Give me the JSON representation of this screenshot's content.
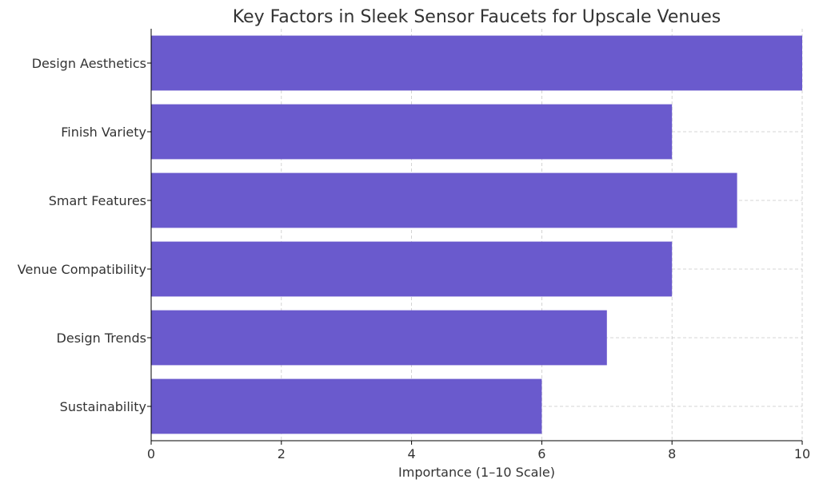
{
  "chart_data": {
    "type": "bar",
    "orientation": "horizontal",
    "title": "Key Factors in Sleek Sensor Faucets for Upscale Venues",
    "xlabel": "Importance (1–10 Scale)",
    "ylabel": "",
    "categories": [
      "Design Aesthetics",
      "Finish Variety",
      "Smart Features",
      "Venue Compatibility",
      "Design Trends",
      "Sustainability"
    ],
    "values": [
      10,
      8,
      9,
      8,
      7,
      6
    ],
    "xlim": [
      0,
      10
    ],
    "xticks": [
      "0",
      "2",
      "4",
      "6",
      "8",
      "10"
    ],
    "grid": true,
    "bar_color": "#6a5acd"
  }
}
